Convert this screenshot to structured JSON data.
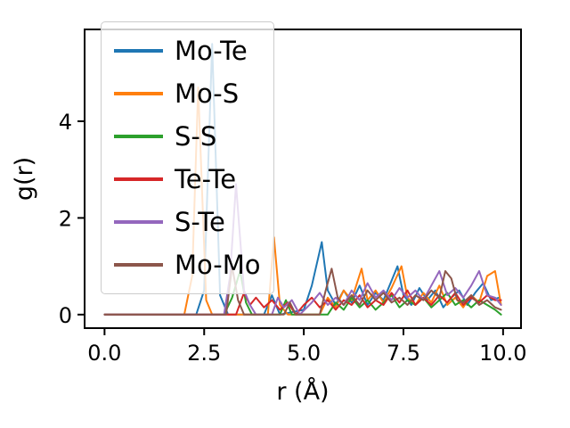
{
  "figure": {
    "background": "#ffffff"
  },
  "chart_data": {
    "type": "line",
    "title": "",
    "xlabel": "r (Å)",
    "ylabel": "g(r)",
    "xlim": [
      -0.5,
      10.45
    ],
    "ylim": [
      -0.28,
      5.9
    ],
    "xticks": [
      0.0,
      2.5,
      5.0,
      7.5,
      10.0
    ],
    "xtick_labels": [
      "0.0",
      "2.5",
      "5.0",
      "7.5",
      "10.0"
    ],
    "yticks": [
      0,
      2,
      4
    ],
    "ytick_labels": [
      "0",
      "2",
      "4"
    ],
    "grid": false,
    "legend_position": "upper-left",
    "legend_framealpha": 0.8,
    "series": [
      {
        "name": "Mo-Te",
        "color": "#1f77b4",
        "points": [
          [
            0,
            0
          ],
          [
            2.3,
            0
          ],
          [
            2.5,
            0.5
          ],
          [
            2.7,
            5.6
          ],
          [
            2.9,
            0.4
          ],
          [
            3.1,
            0
          ],
          [
            4.0,
            0
          ],
          [
            4.2,
            0.4
          ],
          [
            4.4,
            0
          ],
          [
            5.0,
            0.1
          ],
          [
            5.2,
            0.6
          ],
          [
            5.45,
            1.5
          ],
          [
            5.6,
            0.5
          ],
          [
            5.8,
            0.2
          ],
          [
            6.0,
            0.5
          ],
          [
            6.2,
            0.25
          ],
          [
            6.4,
            0.6
          ],
          [
            6.6,
            0.2
          ],
          [
            6.8,
            0.45
          ],
          [
            7.0,
            0.3
          ],
          [
            7.2,
            0.7
          ],
          [
            7.35,
            1.0
          ],
          [
            7.5,
            0.4
          ],
          [
            7.7,
            0.2
          ],
          [
            7.9,
            0.55
          ],
          [
            8.1,
            0.3
          ],
          [
            8.3,
            0.5
          ],
          [
            8.5,
            0.15
          ],
          [
            8.7,
            0.35
          ],
          [
            8.9,
            0.5
          ],
          [
            9.1,
            0.2
          ],
          [
            9.3,
            0.45
          ],
          [
            9.5,
            0.65
          ],
          [
            9.7,
            0.3
          ],
          [
            9.9,
            0.35
          ]
        ]
      },
      {
        "name": "Mo-S",
        "color": "#ff7f0e",
        "points": [
          [
            0,
            0
          ],
          [
            2.0,
            0
          ],
          [
            2.2,
            0.8
          ],
          [
            2.35,
            4.7
          ],
          [
            2.55,
            0.3
          ],
          [
            2.7,
            0
          ],
          [
            4.1,
            0
          ],
          [
            4.25,
            1.6
          ],
          [
            4.4,
            0.2
          ],
          [
            4.6,
            0
          ],
          [
            5.4,
            0
          ],
          [
            5.6,
            0.35
          ],
          [
            5.8,
            0.15
          ],
          [
            6.0,
            0.5
          ],
          [
            6.2,
            0.3
          ],
          [
            6.45,
            0.95
          ],
          [
            6.6,
            0.3
          ],
          [
            6.8,
            0.5
          ],
          [
            7.0,
            0.25
          ],
          [
            7.2,
            0.55
          ],
          [
            7.45,
            1.0
          ],
          [
            7.6,
            0.35
          ],
          [
            7.8,
            0.2
          ],
          [
            8.0,
            0.45
          ],
          [
            8.2,
            0.25
          ],
          [
            8.4,
            0.6
          ],
          [
            8.6,
            0.2
          ],
          [
            8.8,
            0.35
          ],
          [
            9.0,
            0.15
          ],
          [
            9.2,
            0.4
          ],
          [
            9.4,
            0.25
          ],
          [
            9.6,
            0.8
          ],
          [
            9.8,
            0.9
          ],
          [
            9.95,
            0.2
          ]
        ]
      },
      {
        "name": "S-S",
        "color": "#2ca02c",
        "points": [
          [
            0,
            0
          ],
          [
            3.0,
            0
          ],
          [
            3.2,
            0.35
          ],
          [
            3.4,
            0.9
          ],
          [
            3.55,
            0.25
          ],
          [
            3.7,
            0
          ],
          [
            4.4,
            0
          ],
          [
            4.55,
            0.3
          ],
          [
            4.7,
            0
          ],
          [
            5.6,
            0
          ],
          [
            5.8,
            0.25
          ],
          [
            6.0,
            0.1
          ],
          [
            6.2,
            0.35
          ],
          [
            6.4,
            0.15
          ],
          [
            6.6,
            0.3
          ],
          [
            6.8,
            0.1
          ],
          [
            7.0,
            0.25
          ],
          [
            7.2,
            0.4
          ],
          [
            7.4,
            0.15
          ],
          [
            7.6,
            0.3
          ],
          [
            7.8,
            0.2
          ],
          [
            8.0,
            0.35
          ],
          [
            8.2,
            0.15
          ],
          [
            8.4,
            0.3
          ],
          [
            8.6,
            0.45
          ],
          [
            8.8,
            0.2
          ],
          [
            9.0,
            0.3
          ],
          [
            9.2,
            0.15
          ],
          [
            9.4,
            0.3
          ],
          [
            9.6,
            0.2
          ],
          [
            9.8,
            0.1
          ],
          [
            9.95,
            0
          ]
        ]
      },
      {
        "name": "Te-Te",
        "color": "#d62728",
        "points": [
          [
            0,
            0
          ],
          [
            3.3,
            0
          ],
          [
            3.5,
            0.45
          ],
          [
            3.65,
            0.2
          ],
          [
            3.8,
            0.35
          ],
          [
            4.0,
            0.15
          ],
          [
            4.2,
            0.3
          ],
          [
            4.4,
            0.1
          ],
          [
            4.6,
            0.25
          ],
          [
            4.8,
            0
          ],
          [
            5.0,
            0.2
          ],
          [
            5.2,
            0.35
          ],
          [
            5.4,
            0.15
          ],
          [
            5.6,
            0.3
          ],
          [
            5.8,
            0.1
          ],
          [
            6.0,
            0.3
          ],
          [
            6.2,
            0.2
          ],
          [
            6.4,
            0.4
          ],
          [
            6.6,
            0.15
          ],
          [
            6.8,
            0.3
          ],
          [
            7.0,
            0.2
          ],
          [
            7.2,
            0.45
          ],
          [
            7.4,
            0.25
          ],
          [
            7.6,
            0.5
          ],
          [
            7.8,
            0.2
          ],
          [
            8.0,
            0.35
          ],
          [
            8.2,
            0.2
          ],
          [
            8.4,
            0.4
          ],
          [
            8.6,
            0.25
          ],
          [
            8.8,
            0.45
          ],
          [
            9.0,
            0.2
          ],
          [
            9.2,
            0.35
          ],
          [
            9.4,
            0.25
          ],
          [
            9.6,
            0.4
          ],
          [
            9.8,
            0.3
          ],
          [
            9.95,
            0.3
          ]
        ]
      },
      {
        "name": "S-Te",
        "color": "#9467bd",
        "points": [
          [
            0,
            0
          ],
          [
            3.0,
            0
          ],
          [
            3.15,
            0.8
          ],
          [
            3.3,
            2.7
          ],
          [
            3.5,
            0.5
          ],
          [
            3.65,
            0.2
          ],
          [
            3.8,
            0
          ],
          [
            4.2,
            0
          ],
          [
            4.35,
            0.35
          ],
          [
            4.5,
            0.15
          ],
          [
            4.7,
            0.3
          ],
          [
            4.9,
            0
          ],
          [
            5.2,
            0.25
          ],
          [
            5.4,
            0.45
          ],
          [
            5.6,
            0.2
          ],
          [
            5.8,
            0.35
          ],
          [
            6.0,
            0.2
          ],
          [
            6.2,
            0.5
          ],
          [
            6.4,
            0.3
          ],
          [
            6.6,
            0.65
          ],
          [
            6.8,
            0.35
          ],
          [
            7.0,
            0.5
          ],
          [
            7.2,
            0.3
          ],
          [
            7.4,
            0.55
          ],
          [
            7.6,
            0.35
          ],
          [
            7.8,
            0.5
          ],
          [
            8.0,
            0.3
          ],
          [
            8.2,
            0.6
          ],
          [
            8.4,
            0.9
          ],
          [
            8.6,
            0.4
          ],
          [
            8.8,
            0.55
          ],
          [
            9.0,
            0.35
          ],
          [
            9.2,
            0.6
          ],
          [
            9.4,
            0.9
          ],
          [
            9.6,
            0.4
          ],
          [
            9.8,
            0.35
          ],
          [
            9.95,
            0.2
          ]
        ]
      },
      {
        "name": "Mo-Mo",
        "color": "#8c564b",
        "points": [
          [
            0,
            0
          ],
          [
            3.05,
            0
          ],
          [
            3.2,
            1.0
          ],
          [
            3.35,
            0.3
          ],
          [
            3.5,
            0
          ],
          [
            4.5,
            0
          ],
          [
            4.65,
            0.25
          ],
          [
            4.8,
            0
          ],
          [
            5.4,
            0
          ],
          [
            5.55,
            0.5
          ],
          [
            5.7,
            0.95
          ],
          [
            5.85,
            0.35
          ],
          [
            6.0,
            0.2
          ],
          [
            6.2,
            0.4
          ],
          [
            6.4,
            0.2
          ],
          [
            6.6,
            0.5
          ],
          [
            6.8,
            0.3
          ],
          [
            7.0,
            0.45
          ],
          [
            7.2,
            0.25
          ],
          [
            7.4,
            0.35
          ],
          [
            7.6,
            0.2
          ],
          [
            7.8,
            0.4
          ],
          [
            8.0,
            0.3
          ],
          [
            8.2,
            0.5
          ],
          [
            8.4,
            0.35
          ],
          [
            8.55,
            0.9
          ],
          [
            8.7,
            0.75
          ],
          [
            8.85,
            0.3
          ],
          [
            9.0,
            0.25
          ],
          [
            9.2,
            0.4
          ],
          [
            9.4,
            0.2
          ],
          [
            9.6,
            0.3
          ],
          [
            9.8,
            0.15
          ],
          [
            9.95,
            0.1
          ]
        ]
      }
    ]
  }
}
